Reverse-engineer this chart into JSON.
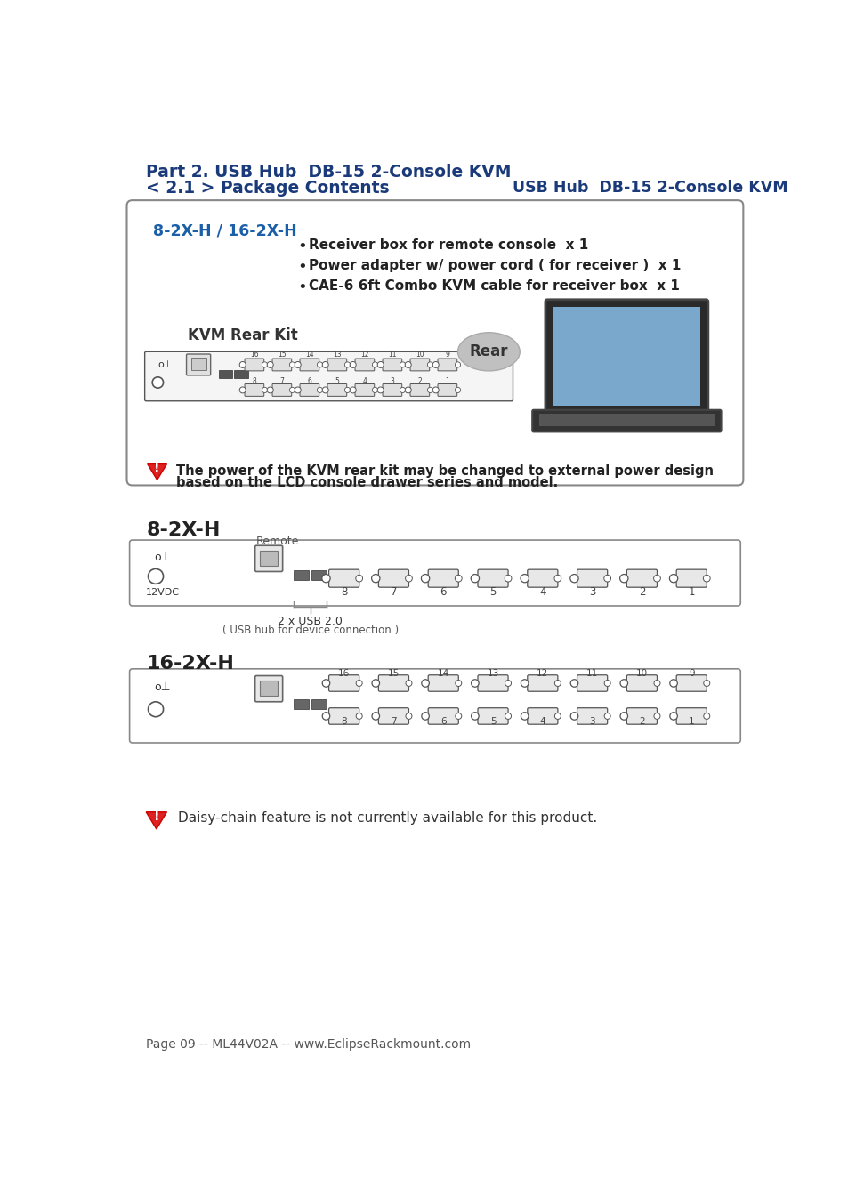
{
  "bg_color": "#ffffff",
  "dark_blue": "#1a3a7a",
  "light_blue": "#1a5fa8",
  "title_line1": "Part 2. USB Hub  DB-15 2-Console KVM",
  "title_line2": "< 2.1 > Package Contents",
  "header_right": "USB Hub  DB-15 2-Console KVM",
  "box_title": "8-2X-H / 16-2X-H",
  "box_title_color": "#1a5fa8",
  "bullet1": "Receiver box for remote console  x 1",
  "bullet2": "Power adapter w/ power cord ( for receiver )  x 1",
  "bullet3": "CAE-6 6ft Combo KVM cable for receiver box  x 1",
  "kvm_rear_kit": "KVM Rear Kit",
  "rear_label": "Rear",
  "warning_text1": "The power of the KVM rear kit may be changed to external power design",
  "warning_text2": "based on the LCD console drawer series and model.",
  "section_8": "8-2X-H",
  "remote_label": "Remote",
  "usb_label": "2 x USB 2.0",
  "usb_sub": "( USB hub for device connection )",
  "v12dc": "12VDC",
  "section_16": "16-2X-H",
  "daisy_text": "Daisy-chain feature is not currently available for this product.",
  "footer_text": "Page 09 -- ML44V02A -- www.EclipseRackmount.com"
}
